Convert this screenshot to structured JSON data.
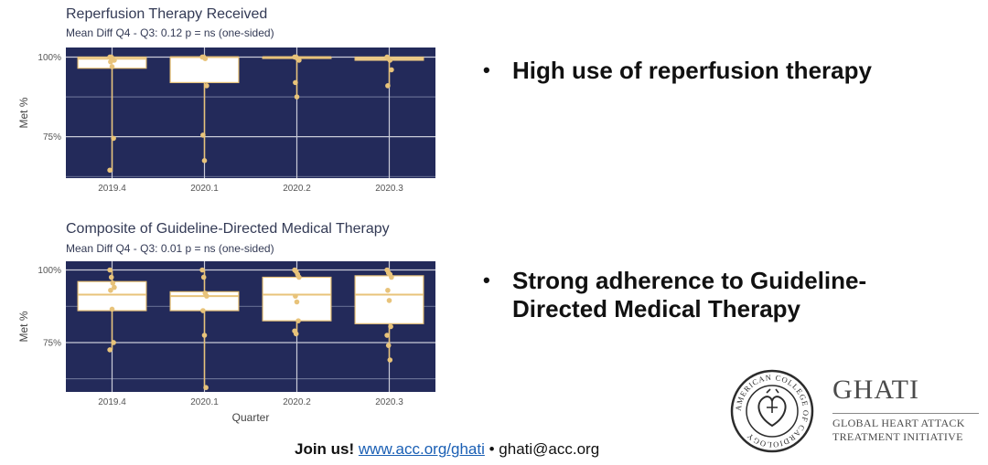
{
  "chart_data": [
    {
      "type": "box",
      "title": "Reperfusion Therapy Received",
      "subtitle": "Mean Diff Q4 - Q3: 0.12 p = ns (one-sided)",
      "ylabel": "Met %",
      "xlabel": "",
      "ylim": [
        62,
        103
      ],
      "yticks": [
        {
          "value": 100,
          "label": "100%"
        },
        {
          "value": 75,
          "label": "75%"
        }
      ],
      "categories": [
        "2019.4",
        "2020.1",
        "2020.2",
        "2020.3"
      ],
      "boxes": [
        {
          "q1": 96.5,
          "median": 99.5,
          "q3": 100,
          "whisker_low": 64,
          "whisker_high": 100
        },
        {
          "q1": 92,
          "median": 100,
          "q3": 100,
          "whisker_low": 67,
          "whisker_high": 100
        },
        {
          "q1": 99.8,
          "median": 100,
          "q3": 100,
          "whisker_low": 87.5,
          "whisker_high": 100
        },
        {
          "q1": 99,
          "median": 99.5,
          "q3": 100,
          "whisker_low": 91,
          "whisker_high": 100
        }
      ],
      "points": [
        [
          100,
          100,
          99.5,
          99,
          98.5,
          97,
          74.5,
          64.5
        ],
        [
          100,
          100,
          99.5,
          91,
          75.5,
          67.5
        ],
        [
          100,
          100,
          99.5,
          99,
          92,
          87.5
        ],
        [
          100,
          99.5,
          99,
          96,
          91
        ]
      ],
      "grid": true,
      "colors": {
        "panel": "#232a5a",
        "box": "#ffffff",
        "accent": "#e8c37a"
      }
    },
    {
      "type": "box",
      "title": "Composite of Guideline-Directed Medical Therapy",
      "subtitle": "Mean Diff Q4 - Q3: 0.01 p = ns (one-sided)",
      "ylabel": "Met %",
      "xlabel": "Quarter",
      "ylim": [
        58,
        103
      ],
      "yticks": [
        {
          "value": 100,
          "label": "100%"
        },
        {
          "value": 75,
          "label": "75%"
        }
      ],
      "categories": [
        "2019.4",
        "2020.1",
        "2020.2",
        "2020.3"
      ],
      "boxes": [
        {
          "q1": 86,
          "median": 91.5,
          "q3": 96,
          "whisker_low": 72.5,
          "whisker_high": 100
        },
        {
          "q1": 86,
          "median": 91,
          "q3": 92.5,
          "whisker_low": 59.5,
          "whisker_high": 100
        },
        {
          "q1": 82.5,
          "median": 91.5,
          "q3": 97.5,
          "whisker_low": 78,
          "whisker_high": 100
        },
        {
          "q1": 81.5,
          "median": 91.5,
          "q3": 98,
          "whisker_low": 69,
          "whisker_high": 100
        }
      ],
      "points": [
        [
          100,
          97.5,
          95.5,
          94,
          93,
          86.5,
          75,
          72.5
        ],
        [
          100,
          97.5,
          92,
          91,
          86,
          77.5,
          59.5
        ],
        [
          100,
          99.5,
          98.5,
          97.5,
          91,
          89,
          82.5,
          79,
          78
        ],
        [
          100,
          99,
          98.5,
          97.5,
          93,
          89.5,
          80.5,
          77.5,
          74,
          69
        ]
      ],
      "grid": true,
      "colors": {
        "panel": "#232a5a",
        "box": "#ffffff",
        "accent": "#e8c37a"
      }
    }
  ],
  "bullets": [
    "High use of reperfusion therapy",
    "Strong adherence to Guideline-Directed Medical Therapy"
  ],
  "bullet_symbol": "•",
  "branding": {
    "logo_icon": "american-college-of-cardiology-seal",
    "ghati_title": "GHATI",
    "ghati_sub_line1": "GLOBAL HEART ATTACK",
    "ghati_sub_line2": "TREATMENT INITIATIVE",
    "logo_ring_text": "AMERICAN COLLEGE OF CARDIOLOGY"
  },
  "footer": {
    "join": "Join us!",
    "link": "www.acc.org/ghati",
    "separator": " • ",
    "email": "ghati@acc.org"
  }
}
